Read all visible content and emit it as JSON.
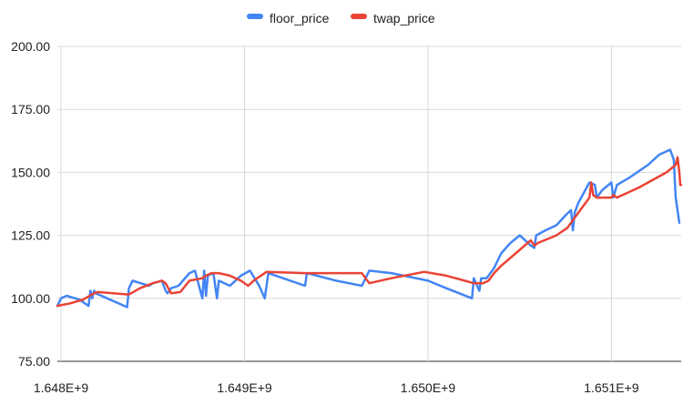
{
  "chart_data": {
    "type": "line",
    "title": "",
    "xlabel": "",
    "ylabel": "",
    "xlim": [
      1647980000,
      1651380000
    ],
    "ylim": [
      75,
      200
    ],
    "yticks": [
      75,
      100,
      125,
      150,
      175,
      200
    ],
    "ytick_labels": [
      "75.00",
      "100.00",
      "125.00",
      "150.00",
      "175.00",
      "200.00"
    ],
    "xticks": [
      1648000000,
      1649000000,
      1650000000,
      1651000000
    ],
    "xtick_labels": [
      "1.648E+9",
      "1.649E+9",
      "1.650E+9",
      "1.651E+9"
    ],
    "grid": true,
    "legend_position": "top-center",
    "series": [
      {
        "name": "floor_price",
        "color": "#4285f4",
        "points": [
          [
            1647980000,
            97
          ],
          [
            1648000000,
            100
          ],
          [
            1648030000,
            101
          ],
          [
            1648100000,
            99.5
          ],
          [
            1648150000,
            97
          ],
          [
            1648160000,
            103
          ],
          [
            1648170000,
            100
          ],
          [
            1648180000,
            103
          ],
          [
            1648190000,
            102
          ],
          [
            1648360000,
            96.5
          ],
          [
            1648370000,
            104
          ],
          [
            1648390000,
            107
          ],
          [
            1648480000,
            105
          ],
          [
            1648500000,
            106
          ],
          [
            1648550000,
            107
          ],
          [
            1648570000,
            103
          ],
          [
            1648580000,
            102
          ],
          [
            1648600000,
            104
          ],
          [
            1648640000,
            105
          ],
          [
            1648700000,
            110
          ],
          [
            1648730000,
            111
          ],
          [
            1648770000,
            100
          ],
          [
            1648780000,
            111
          ],
          [
            1648790000,
            101
          ],
          [
            1648800000,
            109
          ],
          [
            1648830000,
            110
          ],
          [
            1648850000,
            100
          ],
          [
            1648860000,
            107
          ],
          [
            1648920000,
            105
          ],
          [
            1648980000,
            109
          ],
          [
            1649030000,
            111
          ],
          [
            1649080000,
            105
          ],
          [
            1649110000,
            100
          ],
          [
            1649130000,
            110
          ],
          [
            1649210000,
            108
          ],
          [
            1649330000,
            105
          ],
          [
            1649340000,
            110
          ],
          [
            1649500000,
            107
          ],
          [
            1649640000,
            105
          ],
          [
            1649680000,
            111
          ],
          [
            1649800000,
            110
          ],
          [
            1650000000,
            107
          ],
          [
            1650100000,
            104
          ],
          [
            1650240000,
            100
          ],
          [
            1650250000,
            108
          ],
          [
            1650280000,
            103
          ],
          [
            1650290000,
            108
          ],
          [
            1650320000,
            108
          ],
          [
            1650360000,
            112
          ],
          [
            1650400000,
            118
          ],
          [
            1650450000,
            122
          ],
          [
            1650500000,
            125
          ],
          [
            1650560000,
            121
          ],
          [
            1650580000,
            120
          ],
          [
            1650590000,
            125
          ],
          [
            1650640000,
            127
          ],
          [
            1650700000,
            129
          ],
          [
            1650750000,
            133
          ],
          [
            1650780000,
            135
          ],
          [
            1650790000,
            127
          ],
          [
            1650800000,
            134
          ],
          [
            1650820000,
            138
          ],
          [
            1650880000,
            146
          ],
          [
            1650910000,
            145
          ],
          [
            1650920000,
            140
          ],
          [
            1650950000,
            143
          ],
          [
            1651000000,
            146
          ],
          [
            1651010000,
            140
          ],
          [
            1651030000,
            145
          ],
          [
            1651100000,
            148
          ],
          [
            1651200000,
            153
          ],
          [
            1651260000,
            157
          ],
          [
            1651320000,
            159
          ],
          [
            1651340000,
            155
          ],
          [
            1651350000,
            140
          ],
          [
            1651360000,
            135
          ],
          [
            1651370000,
            130
          ]
        ]
      },
      {
        "name": "twap_price",
        "color": "#ea4335",
        "points": [
          [
            1647980000,
            97
          ],
          [
            1648050000,
            98
          ],
          [
            1648120000,
            99.5
          ],
          [
            1648180000,
            102
          ],
          [
            1648200000,
            102.5
          ],
          [
            1648370000,
            101.5
          ],
          [
            1648430000,
            104
          ],
          [
            1648500000,
            106
          ],
          [
            1648550000,
            107
          ],
          [
            1648570000,
            106
          ],
          [
            1648600000,
            102
          ],
          [
            1648650000,
            102.5
          ],
          [
            1648700000,
            107
          ],
          [
            1648770000,
            108
          ],
          [
            1648790000,
            109
          ],
          [
            1648820000,
            110
          ],
          [
            1648860000,
            110
          ],
          [
            1648920000,
            109
          ],
          [
            1648980000,
            107
          ],
          [
            1649020000,
            105
          ],
          [
            1649050000,
            107
          ],
          [
            1649120000,
            110.5
          ],
          [
            1649330000,
            110
          ],
          [
            1649500000,
            110
          ],
          [
            1649640000,
            110
          ],
          [
            1649680000,
            106
          ],
          [
            1649800000,
            108
          ],
          [
            1649980000,
            110.5
          ],
          [
            1650100000,
            109
          ],
          [
            1650250000,
            106
          ],
          [
            1650300000,
            106
          ],
          [
            1650330000,
            107
          ],
          [
            1650360000,
            110
          ],
          [
            1650400000,
            113
          ],
          [
            1650480000,
            118
          ],
          [
            1650560000,
            123
          ],
          [
            1650580000,
            121
          ],
          [
            1650600000,
            122
          ],
          [
            1650700000,
            125
          ],
          [
            1650760000,
            128
          ],
          [
            1650800000,
            132
          ],
          [
            1650850000,
            137
          ],
          [
            1650880000,
            140
          ],
          [
            1650890000,
            146
          ],
          [
            1650900000,
            141
          ],
          [
            1650920000,
            140
          ],
          [
            1651000000,
            140
          ],
          [
            1651010000,
            141
          ],
          [
            1651030000,
            140
          ],
          [
            1651150000,
            144
          ],
          [
            1651300000,
            150
          ],
          [
            1651350000,
            153
          ],
          [
            1651360000,
            156
          ],
          [
            1651370000,
            150
          ],
          [
            1651375000,
            145
          ],
          [
            1651380000,
            145
          ]
        ]
      }
    ]
  }
}
